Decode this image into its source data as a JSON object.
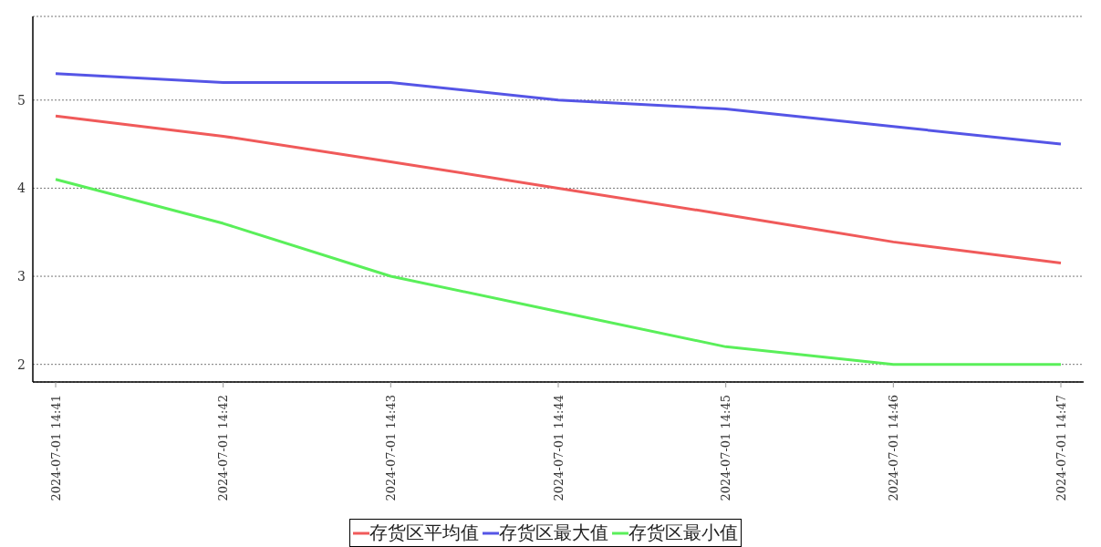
{
  "chart_data": {
    "type": "line",
    "categories": [
      "2024-07-01 14:41",
      "2024-07-01 14:42",
      "2024-07-01 14:43",
      "2024-07-01 14:44",
      "2024-07-01 14:45",
      "2024-07-01 14:46",
      "2024-07-01 14:47"
    ],
    "series": [
      {
        "name": "存货区平均值",
        "color": "#f05a5a",
        "values": [
          4.82,
          4.59,
          4.3,
          4.0,
          3.7,
          3.39,
          3.15
        ]
      },
      {
        "name": "存货区最大值",
        "color": "#5555e6",
        "values": [
          5.3,
          5.2,
          5.2,
          5.0,
          4.9,
          4.7,
          4.5
        ]
      },
      {
        "name": "存货区最小值",
        "color": "#5aef5a",
        "values": [
          4.1,
          3.6,
          3.0,
          2.6,
          2.2,
          2.0,
          2.0
        ]
      }
    ],
    "ylim": [
      1.8,
      5.95
    ],
    "yticks": [
      2,
      3,
      4,
      5
    ],
    "grid": "y",
    "legend": "bottom",
    "marker": "none",
    "line_style": "solid"
  }
}
